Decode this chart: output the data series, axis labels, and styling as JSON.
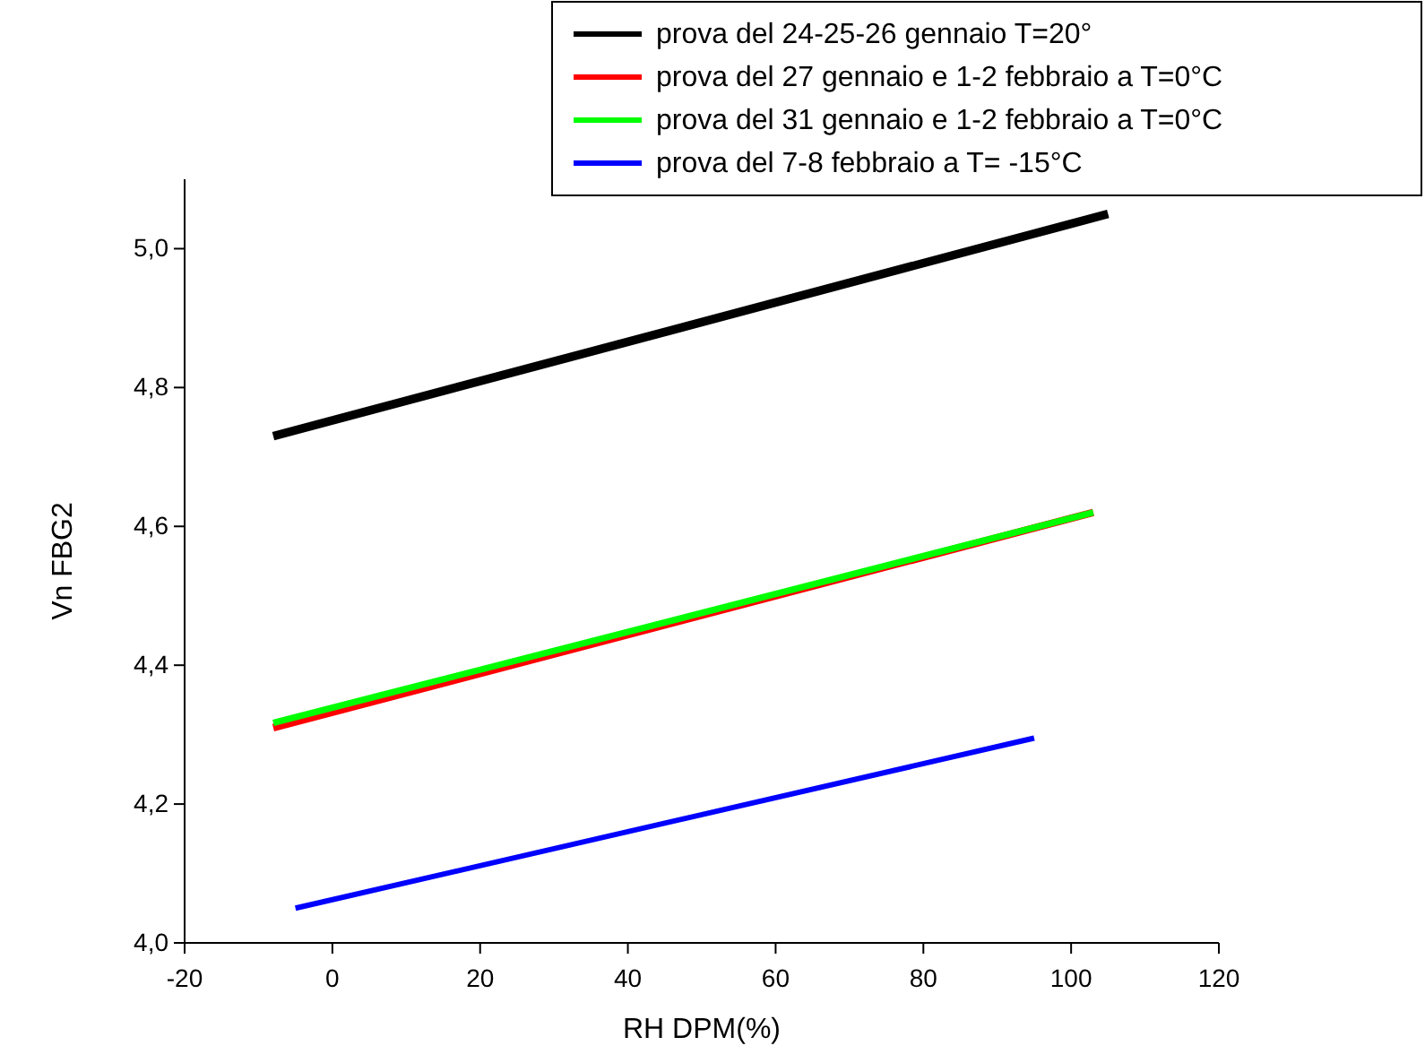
{
  "chart_data": {
    "type": "line",
    "xlabel": "RH DPM(%)",
    "ylabel": "Vn FBG2",
    "xlim": [
      -20,
      120
    ],
    "xticks": [
      -20,
      0,
      20,
      40,
      60,
      80,
      100,
      120
    ],
    "ylim": [
      4.0,
      5.1
    ],
    "yticks": [
      {
        "value": 4.0,
        "label": "4,0"
      },
      {
        "value": 4.2,
        "label": "4,2"
      },
      {
        "value": 4.4,
        "label": "4,4"
      },
      {
        "value": 4.6,
        "label": "4,6"
      },
      {
        "value": 4.8,
        "label": "4,8"
      },
      {
        "value": 5.0,
        "label": "5,0"
      }
    ],
    "grid": false,
    "legend": "top right",
    "line_style": "solid",
    "marker": "none",
    "series": [
      {
        "name": "prova del 24-25-26 gennaio T=20°",
        "color": "#000000",
        "x": [
          -8,
          105
        ],
        "values": [
          4.73,
          5.05
        ]
      },
      {
        "name": "prova del 27 gennaio e 1-2 febbraio a T=0°C",
        "color": "#ff0000",
        "x": [
          -8,
          103
        ],
        "values": [
          4.31,
          4.62
        ]
      },
      {
        "name": "prova del 31 gennaio e 1-2 febbraio a T=0°C",
        "color": "#00ff00",
        "x": [
          -8,
          103
        ],
        "values": [
          4.317,
          4.62
        ]
      },
      {
        "name": "prova del 7-8 febbraio a T= -15°C",
        "color": "#0000ff",
        "x": [
          -5,
          95
        ],
        "values": [
          4.05,
          4.295
        ]
      }
    ]
  }
}
